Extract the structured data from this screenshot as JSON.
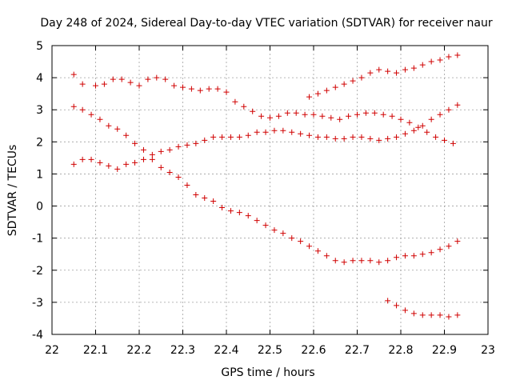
{
  "chart_data": {
    "type": "scatter",
    "title": "Day 248 of 2024, Sidereal Day-to-day VTEC variation (SDTVAR) for receiver naur",
    "xlabel": "GPS time / hours",
    "ylabel": "SDTVAR / TECUs",
    "xlim": [
      22,
      23
    ],
    "ylim": [
      -4,
      5
    ],
    "xticks": [
      "22",
      "22.1",
      "22.2",
      "22.3",
      "22.4",
      "22.5",
      "22.6",
      "22.7",
      "22.8",
      "22.9",
      "23"
    ],
    "yticks": [
      "-4",
      "-3",
      "-2",
      "-1",
      "0",
      "1",
      "2",
      "3",
      "4",
      "5"
    ],
    "grid": true,
    "marker": "+",
    "marker_color": "#d00000",
    "series": [
      {
        "name": "series-1",
        "x": [
          22.05,
          22.07,
          22.1,
          22.12,
          22.14,
          22.16,
          22.18,
          22.2,
          22.22,
          22.24,
          22.26,
          22.28,
          22.3,
          22.32,
          22.34,
          22.36,
          22.38,
          22.4,
          22.42,
          22.44,
          22.46,
          22.48,
          22.5,
          22.52,
          22.54,
          22.56,
          22.58,
          22.6,
          22.62,
          22.64,
          22.66,
          22.68,
          22.7,
          22.72,
          22.74,
          22.76,
          22.78,
          22.8,
          22.82,
          22.84,
          22.86,
          22.88,
          22.9,
          22.92
        ],
        "y": [
          4.1,
          3.8,
          3.75,
          3.8,
          3.95,
          3.95,
          3.85,
          3.75,
          3.95,
          4.0,
          3.95,
          3.75,
          3.7,
          3.65,
          3.6,
          3.65,
          3.65,
          3.55,
          3.25,
          3.1,
          2.95,
          2.8,
          2.75,
          2.8,
          2.9,
          2.9,
          2.85,
          2.85,
          2.8,
          2.75,
          2.7,
          2.8,
          2.85,
          2.9,
          2.9,
          2.85,
          2.8,
          2.7,
          2.6,
          2.45,
          2.3,
          2.15,
          2.05,
          1.95
        ]
      },
      {
        "name": "series-2",
        "x": [
          22.05,
          22.07,
          22.09,
          22.11,
          22.13,
          22.15,
          22.17,
          22.19,
          22.21,
          22.23,
          22.25,
          22.27,
          22.29,
          22.31,
          22.33,
          22.35,
          22.37,
          22.39,
          22.41,
          22.43,
          22.45,
          22.47,
          22.49,
          22.51,
          22.53,
          22.55,
          22.57,
          22.59,
          22.61,
          22.63,
          22.65,
          22.67,
          22.69,
          22.71,
          22.73,
          22.75,
          22.77,
          22.79,
          22.81,
          22.83,
          22.85,
          22.87,
          22.89,
          22.91,
          22.93
        ],
        "y": [
          3.1,
          3.0,
          2.85,
          2.7,
          2.5,
          2.4,
          2.2,
          1.95,
          1.75,
          1.45,
          1.2,
          1.05,
          0.9,
          0.65,
          0.35,
          0.25,
          0.15,
          -0.05,
          -0.15,
          -0.2,
          -0.3,
          -0.45,
          -0.6,
          -0.75,
          -0.85,
          -1.0,
          -1.1,
          -1.25,
          -1.4,
          -1.55,
          -1.7,
          -1.75,
          -1.7,
          -1.7,
          -1.7,
          -1.75,
          -1.7,
          -1.6,
          -1.55,
          -1.55,
          -1.5,
          -1.45,
          -1.35,
          -1.25,
          -1.1
        ]
      },
      {
        "name": "series-3",
        "x": [
          22.05,
          22.07,
          22.09,
          22.11,
          22.13,
          22.15,
          22.17,
          22.19,
          22.21,
          22.23,
          22.25,
          22.27,
          22.29,
          22.31,
          22.33,
          22.35,
          22.37,
          22.39,
          22.41,
          22.43,
          22.45,
          22.47,
          22.49,
          22.51,
          22.53,
          22.55,
          22.57,
          22.59,
          22.61,
          22.63,
          22.65,
          22.67,
          22.69,
          22.71,
          22.73,
          22.75,
          22.77,
          22.79,
          22.81,
          22.83,
          22.85,
          22.87,
          22.89,
          22.91,
          22.93
        ],
        "y": [
          1.3,
          1.45,
          1.45,
          1.35,
          1.25,
          1.15,
          1.3,
          1.35,
          1.45,
          1.6,
          1.7,
          1.75,
          1.85,
          1.9,
          1.95,
          2.05,
          2.15,
          2.15,
          2.15,
          2.15,
          2.2,
          2.3,
          2.3,
          2.35,
          2.35,
          2.3,
          2.25,
          2.2,
          2.15,
          2.15,
          2.1,
          2.1,
          2.15,
          2.15,
          2.1,
          2.05,
          2.1,
          2.15,
          2.25,
          2.35,
          2.5,
          2.7,
          2.85,
          3.0,
          3.15
        ]
      },
      {
        "name": "series-4",
        "x": [
          22.59,
          22.61,
          22.63,
          22.65,
          22.67,
          22.69,
          22.71,
          22.73,
          22.75,
          22.77,
          22.79,
          22.81,
          22.83,
          22.85,
          22.87,
          22.89,
          22.91,
          22.93
        ],
        "y": [
          3.4,
          3.5,
          3.6,
          3.7,
          3.8,
          3.9,
          4.0,
          4.15,
          4.25,
          4.2,
          4.15,
          4.25,
          4.3,
          4.4,
          4.5,
          4.55,
          4.65,
          4.7
        ]
      },
      {
        "name": "series-5",
        "x": [
          22.77,
          22.79,
          22.81,
          22.83,
          22.85,
          22.87,
          22.89,
          22.91,
          22.93
        ],
        "y": [
          -2.95,
          -3.1,
          -3.25,
          -3.35,
          -3.4,
          -3.4,
          -3.4,
          -3.45,
          -3.4
        ]
      }
    ]
  }
}
